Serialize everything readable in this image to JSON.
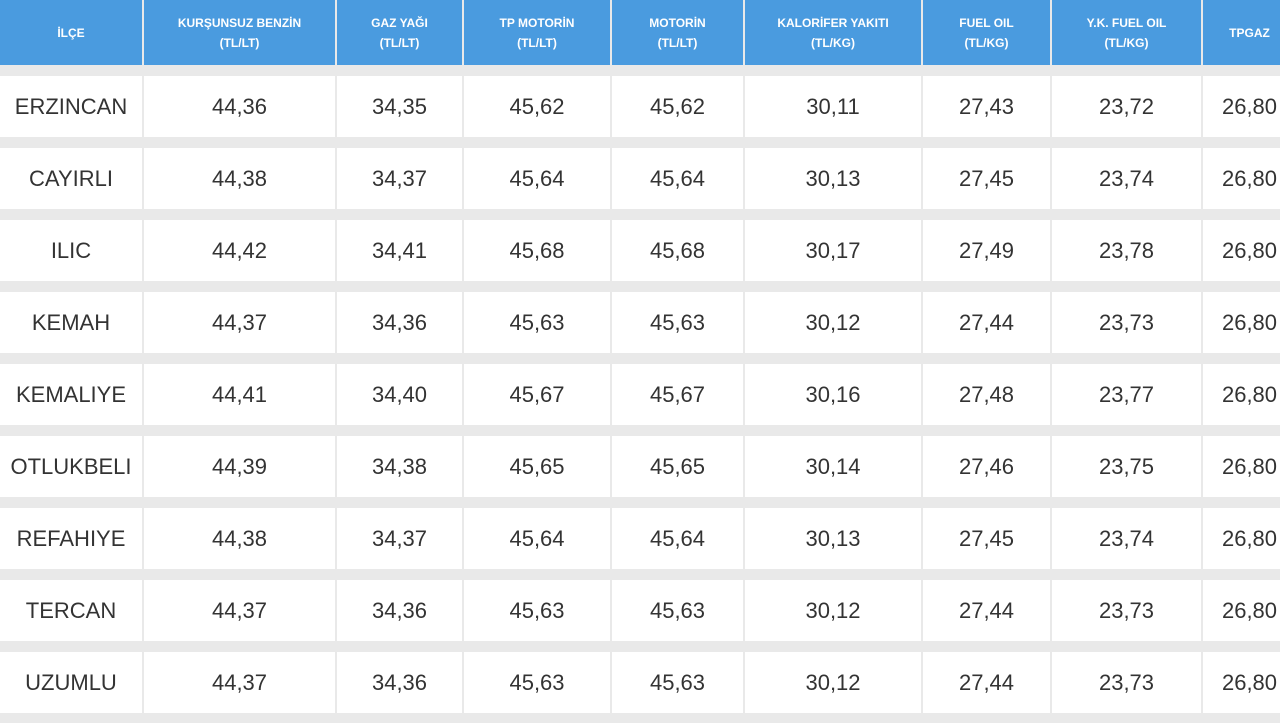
{
  "table": {
    "headers": [
      {
        "line1": "İLÇE",
        "line2": ""
      },
      {
        "line1": "KURŞUNSUZ BENZİN",
        "line2": "(TL/LT)"
      },
      {
        "line1": "GAZ YAĞI",
        "line2": "(TL/LT)"
      },
      {
        "line1": "TP MOTORİN",
        "line2": "(TL/LT)"
      },
      {
        "line1": "MOTORİN",
        "line2": "(TL/LT)"
      },
      {
        "line1": "KALORİFER YAKITI",
        "line2": "(TL/KG)"
      },
      {
        "line1": "FUEL OIL",
        "line2": "(TL/KG)"
      },
      {
        "line1": "Y.K. FUEL OIL",
        "line2": "(TL/KG)"
      },
      {
        "line1": "TPGAZ",
        "line2": ""
      }
    ],
    "rows": [
      [
        "ERZINCAN",
        "44,36",
        "34,35",
        "45,62",
        "45,62",
        "30,11",
        "27,43",
        "23,72",
        "26,80"
      ],
      [
        "CAYIRLI",
        "44,38",
        "34,37",
        "45,64",
        "45,64",
        "30,13",
        "27,45",
        "23,74",
        "26,80"
      ],
      [
        "ILIC",
        "44,42",
        "34,41",
        "45,68",
        "45,68",
        "30,17",
        "27,49",
        "23,78",
        "26,80"
      ],
      [
        "KEMAH",
        "44,37",
        "34,36",
        "45,63",
        "45,63",
        "30,12",
        "27,44",
        "23,73",
        "26,80"
      ],
      [
        "KEMALIYE",
        "44,41",
        "34,40",
        "45,67",
        "45,67",
        "30,16",
        "27,48",
        "23,77",
        "26,80"
      ],
      [
        "OTLUKBELI",
        "44,39",
        "34,38",
        "45,65",
        "45,65",
        "30,14",
        "27,46",
        "23,75",
        "26,80"
      ],
      [
        "REFAHIYE",
        "44,38",
        "34,37",
        "45,64",
        "45,64",
        "30,13",
        "27,45",
        "23,74",
        "26,80"
      ],
      [
        "TERCAN",
        "44,37",
        "34,36",
        "45,63",
        "45,63",
        "30,12",
        "27,44",
        "23,73",
        "26,80"
      ],
      [
        "UZUMLU",
        "44,37",
        "34,36",
        "45,63",
        "45,63",
        "30,12",
        "27,44",
        "23,73",
        "26,80"
      ]
    ]
  },
  "colors": {
    "header_bg": "#4a9bdf",
    "header_text": "#ffffff",
    "cell_bg": "#ffffff",
    "cell_text": "#333333",
    "page_bg": "#e9e9e9"
  }
}
